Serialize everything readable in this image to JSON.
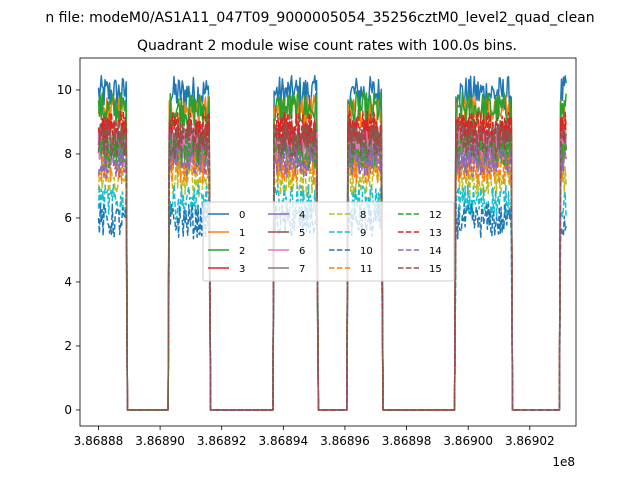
{
  "chart_data": {
    "type": "line",
    "suptitle": "n file: modeM0/AS1A11_047T09_9000005054_35256cztM0_level2_quad_clean",
    "title": "Quadrant 2 module wise count rates with 100.0s bins.",
    "xlabel": "",
    "ylabel": "",
    "x_offset_label": "1e8",
    "x_ticks": [
      3.86888,
      3.8689,
      3.86892,
      3.86894,
      3.86896,
      3.86898,
      3.869,
      3.86902
    ],
    "x_tick_labels": [
      "3.86888",
      "3.86890",
      "3.86892",
      "3.86894",
      "3.86896",
      "3.86898",
      "3.86900",
      "3.86902"
    ],
    "y_ticks": [
      0,
      2,
      4,
      6,
      8,
      10
    ],
    "y_tick_labels": [
      "0",
      "2",
      "4",
      "6",
      "8",
      "10"
    ],
    "xlim": [
      3.868874,
      3.869035
    ],
    "ylim": [
      -0.5,
      11
    ],
    "grid": false,
    "legend": {
      "placement": "center",
      "columns": 4
    },
    "segments": [
      {
        "on": [
          3.86888,
          3.868889
        ],
        "off": [
          3.868889,
          3.868903
        ]
      },
      {
        "on": [
          3.868903,
          3.868916
        ],
        "off": [
          3.868916,
          3.868937
        ]
      },
      {
        "on": [
          3.868937,
          3.868951
        ],
        "off": [
          3.868951,
          3.868961
        ]
      },
      {
        "on": [
          3.868961,
          3.868972
        ],
        "off": [
          3.868972,
          3.868996
        ]
      },
      {
        "on": [
          3.868996,
          3.869014
        ],
        "off": [
          3.869014,
          3.86903
        ]
      },
      {
        "on": [
          3.86903,
          3.869032
        ],
        "off": null
      }
    ],
    "series": [
      {
        "name": "0",
        "level": 9.9,
        "color": "#1f77b4",
        "dash": "solid"
      },
      {
        "name": "1",
        "level": 9.3,
        "color": "#ff7f0e",
        "dash": "solid"
      },
      {
        "name": "2",
        "level": 9.4,
        "color": "#2ca02c",
        "dash": "solid"
      },
      {
        "name": "3",
        "level": 8.6,
        "color": "#d62728",
        "dash": "solid"
      },
      {
        "name": "4",
        "level": 8.3,
        "color": "#9467bd",
        "dash": "solid"
      },
      {
        "name": "5",
        "level": 8.5,
        "color": "#8c564b",
        "dash": "solid"
      },
      {
        "name": "6",
        "level": 8.2,
        "color": "#e377c2",
        "dash": "solid"
      },
      {
        "name": "7",
        "level": 7.9,
        "color": "#7f7f7f",
        "dash": "solid"
      },
      {
        "name": "8",
        "level": 7.2,
        "color": "#bcbd22",
        "dash": "dashed"
      },
      {
        "name": "9",
        "level": 6.5,
        "color": "#17becf",
        "dash": "dashed"
      },
      {
        "name": "10",
        "level": 5.9,
        "color": "#1f77b4",
        "dash": "dashed"
      },
      {
        "name": "11",
        "level": 7.6,
        "color": "#ff7f0e",
        "dash": "dashed"
      },
      {
        "name": "12",
        "level": 8.1,
        "color": "#2ca02c",
        "dash": "dashed"
      },
      {
        "name": "13",
        "level": 8.8,
        "color": "#d62728",
        "dash": "dashed"
      },
      {
        "name": "14",
        "level": 7.8,
        "color": "#9467bd",
        "dash": "dashed"
      },
      {
        "name": "15",
        "level": 8.4,
        "color": "#8c564b",
        "dash": "dashed"
      }
    ]
  }
}
